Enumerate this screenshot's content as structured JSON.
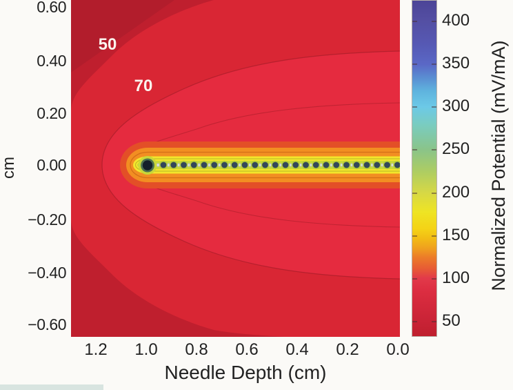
{
  "chart_data": {
    "type": "heatmap",
    "subtype": "filled-contour-equipotential-map",
    "title": "",
    "xlabel": "Needle Depth (cm)",
    "ylabel": "cm",
    "x_ticks": [
      "1.2",
      "1.0",
      "0.8",
      "0.6",
      "0.4",
      "0.2",
      "0.0"
    ],
    "y_ticks": [
      "0.60",
      "0.40",
      "0.20",
      "0.00",
      "−0.20",
      "−0.40",
      "−0.60"
    ],
    "x_axis": {
      "range_cm": [
        1.31,
        -0.01
      ],
      "reversed": true,
      "grid": false
    },
    "y_axis": {
      "range_cm": [
        -0.64,
        0.63
      ],
      "grid": false
    },
    "contour_labels": [
      {
        "text": "50",
        "x_cm": 1.17,
        "y_cm": 0.45
      },
      {
        "text": "70",
        "x_cm": 1.02,
        "y_cm": 0.3
      }
    ],
    "contour_levels_labeled": [
      50,
      70
    ],
    "contour_levels_visible": [
      50,
      70,
      90
    ],
    "needle": {
      "description": "Needle electrode lying along y = 0.00 cm from depth 1.0 cm (tip) to 0.0 cm (surface, right edge); potential is highest at the needle and falls off with distance.",
      "tip_depth_cm": 1.0,
      "y_cm": 0.0,
      "electrode_count": 24,
      "electrode_spacing_cm": 0.04
    },
    "colorbar": {
      "label": "Normalized Potential (mV/mA)",
      "ticks": [
        400,
        350,
        300,
        250,
        200,
        150,
        100,
        50
      ],
      "range": [
        32,
        424
      ],
      "gradient_stops": [
        {
          "pos": 0,
          "color": "#4c4497"
        },
        {
          "pos": 6,
          "color": "#544fa3"
        },
        {
          "pos": 13,
          "color": "#5659b4"
        },
        {
          "pos": 19,
          "color": "#5a68c6"
        },
        {
          "pos": 23,
          "color": "#5a8ed2"
        },
        {
          "pos": 27,
          "color": "#5fb4de"
        },
        {
          "pos": 31.6,
          "color": "#6cc9e7"
        },
        {
          "pos": 37,
          "color": "#7accc0"
        },
        {
          "pos": 44.4,
          "color": "#8ac489"
        },
        {
          "pos": 51,
          "color": "#aecd62"
        },
        {
          "pos": 57.3,
          "color": "#d7d845"
        },
        {
          "pos": 63,
          "color": "#eee424"
        },
        {
          "pos": 68,
          "color": "#f4d316"
        },
        {
          "pos": 71,
          "color": "#f2bb15"
        },
        {
          "pos": 74,
          "color": "#ef9d1f"
        },
        {
          "pos": 76.3,
          "color": "#ec7e28"
        },
        {
          "pos": 80,
          "color": "#e75a35"
        },
        {
          "pos": 82.7,
          "color": "#e23a4a"
        },
        {
          "pos": 86,
          "color": "#dd2e42"
        },
        {
          "pos": 89.3,
          "color": "#d62a3d"
        },
        {
          "pos": 95.5,
          "color": "#c92336"
        },
        {
          "pos": 100,
          "color": "#bf1f2e"
        }
      ]
    },
    "field_colors": {
      "below_50": "#bf1f2e",
      "corner_dark": "#b21d2c",
      "band_50_70": "#d92634",
      "band_70_plus": "#e52b3f",
      "contour_line": "#8f1822",
      "orange_red": "#e34f27",
      "orange": "#f28e22",
      "dark_orange_line": "#cf6a16",
      "yellow": "#f3e52c",
      "olive_line": "#a8aa28",
      "yellow_green": "#c9d838",
      "dot_halo": "#b5cb36",
      "needle_shaft": "#bdc6cc",
      "needle_shaft_light": "#e7ebee",
      "electrode": "#33475a",
      "tip_ring": "#4e7250",
      "tip": "#131f2b"
    }
  }
}
